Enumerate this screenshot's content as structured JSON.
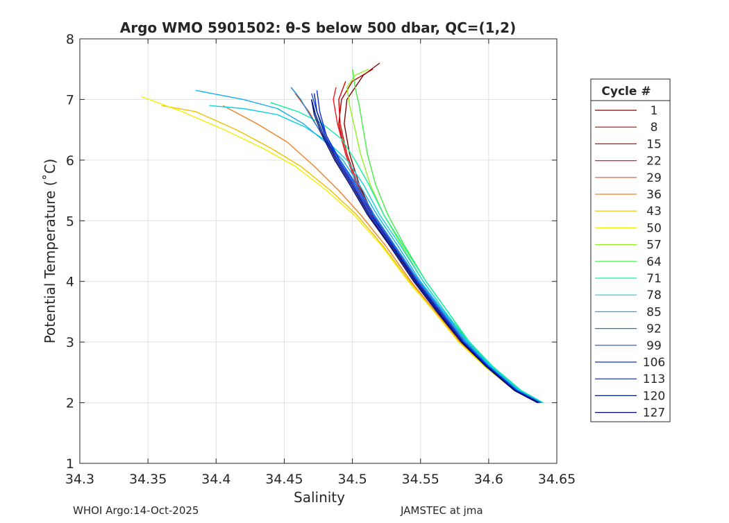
{
  "chart_data": {
    "type": "line",
    "title": "Argo WMO 5901502: θ-S below 500 dbar,  QC=(1,2)",
    "xlabel": "Salinity",
    "ylabel": "Potential Temperature (˚C)",
    "xlim": [
      34.3,
      34.65
    ],
    "ylim": [
      1,
      8
    ],
    "xticks": [
      34.3,
      34.35,
      34.4,
      34.45,
      34.5,
      34.55,
      34.6,
      34.65
    ],
    "xtick_labels": [
      "34.3",
      "34.35",
      "34.4",
      "34.45",
      "34.5",
      "34.55",
      "34.6",
      "34.65"
    ],
    "yticks": [
      1,
      2,
      3,
      4,
      5,
      6,
      7,
      8
    ],
    "ytick_labels": [
      "1",
      "2",
      "3",
      "4",
      "5",
      "6",
      "7",
      "8"
    ],
    "grid": true,
    "legend": {
      "title": "Cycle #",
      "placement": "outside-right",
      "entries": [
        {
          "label": "1",
          "color": "#800000"
        },
        {
          "label": "8",
          "color": "#b00000"
        },
        {
          "label": "15",
          "color": "#e00000"
        },
        {
          "label": "22",
          "color": "#f01818"
        },
        {
          "label": "29",
          "color": "#f05010"
        },
        {
          "label": "36",
          "color": "#f08020"
        },
        {
          "label": "43",
          "color": "#f0c000"
        },
        {
          "label": "50",
          "color": "#f0f000"
        },
        {
          "label": "57",
          "color": "#90f020"
        },
        {
          "label": "64",
          "color": "#40f040"
        },
        {
          "label": "71",
          "color": "#10f0a0"
        },
        {
          "label": "78",
          "color": "#10d0e0"
        },
        {
          "label": "85",
          "color": "#10b0f0"
        },
        {
          "label": "92",
          "color": "#1080e0"
        },
        {
          "label": "99",
          "color": "#1050e0"
        },
        {
          "label": "106",
          "color": "#1030d0"
        },
        {
          "label": "113",
          "color": "#0020b0"
        },
        {
          "label": "120",
          "color": "#001890"
        },
        {
          "label": "127",
          "color": "#000870"
        }
      ]
    },
    "series": [
      {
        "name": "1",
        "color": "#800000",
        "x": [
          34.638,
          34.622,
          34.6,
          34.582,
          34.565,
          34.548,
          34.53,
          34.515,
          34.505,
          34.498,
          34.494,
          34.496,
          34.508,
          34.52
        ],
        "y": [
          2.0,
          2.2,
          2.6,
          3.0,
          3.5,
          4.0,
          4.6,
          5.1,
          5.6,
          6.1,
          6.6,
          7.0,
          7.4,
          7.6
        ]
      },
      {
        "name": "8",
        "color": "#b00000",
        "x": [
          34.637,
          34.62,
          34.598,
          34.58,
          34.563,
          34.546,
          34.529,
          34.514,
          34.503,
          34.495,
          34.49,
          34.492,
          34.5,
          34.515
        ],
        "y": [
          2.0,
          2.2,
          2.6,
          3.0,
          3.5,
          4.0,
          4.6,
          5.1,
          5.6,
          6.1,
          6.6,
          7.0,
          7.3,
          7.5
        ]
      },
      {
        "name": "15",
        "color": "#e00000",
        "x": [
          34.637,
          34.621,
          34.599,
          34.581,
          34.564,
          34.547,
          34.53,
          34.515,
          34.504,
          34.496,
          34.491,
          34.49,
          34.495
        ],
        "y": [
          2.0,
          2.2,
          2.6,
          3.0,
          3.5,
          4.0,
          4.6,
          5.1,
          5.6,
          6.1,
          6.6,
          7.0,
          7.3
        ]
      },
      {
        "name": "22",
        "color": "#f01818",
        "x": [
          34.636,
          34.62,
          34.598,
          34.58,
          34.563,
          34.546,
          34.529,
          34.514,
          34.503,
          34.495,
          34.489,
          34.486,
          34.488
        ],
        "y": [
          2.0,
          2.2,
          2.6,
          3.0,
          3.5,
          4.0,
          4.6,
          5.1,
          5.6,
          6.1,
          6.6,
          7.0,
          7.2
        ]
      },
      {
        "name": "29",
        "color": "#f05010",
        "x": [
          34.636,
          34.619,
          34.597,
          34.579,
          34.562,
          34.545,
          34.527,
          34.512,
          34.5,
          34.489,
          34.478,
          34.468,
          34.458
        ],
        "y": [
          2.0,
          2.2,
          2.6,
          3.0,
          3.5,
          4.0,
          4.6,
          5.1,
          5.6,
          6.0,
          6.4,
          6.8,
          7.1
        ]
      },
      {
        "name": "36",
        "color": "#f08020",
        "x": [
          34.636,
          34.619,
          34.597,
          34.579,
          34.561,
          34.543,
          34.524,
          34.506,
          34.49,
          34.472,
          34.452,
          34.43,
          34.405
        ],
        "y": [
          2.0,
          2.2,
          2.6,
          3.0,
          3.5,
          4.0,
          4.6,
          5.1,
          5.5,
          5.9,
          6.3,
          6.6,
          6.9
        ]
      },
      {
        "name": "43",
        "color": "#f0c000",
        "x": [
          34.636,
          34.619,
          34.597,
          34.578,
          34.56,
          34.542,
          34.522,
          34.503,
          34.484,
          34.462,
          34.44,
          34.415,
          34.385,
          34.36
        ],
        "y": [
          2.0,
          2.2,
          2.6,
          3.0,
          3.5,
          4.0,
          4.6,
          5.1,
          5.5,
          5.9,
          6.2,
          6.5,
          6.8,
          6.9
        ]
      },
      {
        "name": "50",
        "color": "#f0f000",
        "x": [
          34.636,
          34.619,
          34.597,
          34.578,
          34.56,
          34.541,
          34.521,
          34.501,
          34.481,
          34.458,
          34.434,
          34.406,
          34.375,
          34.345
        ],
        "y": [
          2.0,
          2.2,
          2.6,
          3.0,
          3.5,
          4.0,
          4.6,
          5.1,
          5.5,
          5.9,
          6.2,
          6.5,
          6.8,
          7.05
        ]
      },
      {
        "name": "57",
        "color": "#90f020",
        "x": [
          34.638,
          34.622,
          34.601,
          34.584,
          34.568,
          34.552,
          34.536,
          34.523,
          34.513,
          34.506,
          34.502,
          34.498,
          34.496,
          34.502,
          34.512
        ],
        "y": [
          2.0,
          2.2,
          2.6,
          3.0,
          3.5,
          4.0,
          4.6,
          5.1,
          5.6,
          6.1,
          6.5,
          6.9,
          7.2,
          7.4,
          7.5
        ]
      },
      {
        "name": "64",
        "color": "#40f040",
        "x": [
          34.639,
          34.623,
          34.602,
          34.585,
          34.57,
          34.554,
          34.538,
          34.526,
          34.517,
          34.511,
          34.508,
          34.505,
          34.502,
          34.5
        ],
        "y": [
          2.0,
          2.2,
          2.6,
          3.0,
          3.5,
          4.0,
          4.6,
          5.1,
          5.6,
          6.1,
          6.5,
          6.9,
          7.2,
          7.5
        ]
      },
      {
        "name": "71",
        "color": "#10f0a0",
        "x": [
          34.64,
          34.624,
          34.603,
          34.586,
          34.57,
          34.554,
          34.537,
          34.523,
          34.512,
          34.502,
          34.492,
          34.478,
          34.46,
          34.44
        ],
        "y": [
          2.0,
          2.2,
          2.6,
          3.0,
          3.5,
          4.0,
          4.6,
          5.1,
          5.6,
          6.0,
          6.35,
          6.6,
          6.8,
          6.95
        ]
      },
      {
        "name": "78",
        "color": "#10d0e0",
        "x": [
          34.639,
          34.623,
          34.602,
          34.585,
          34.568,
          34.552,
          34.535,
          34.52,
          34.508,
          34.496,
          34.482,
          34.465,
          34.445,
          34.42,
          34.395
        ],
        "y": [
          2.0,
          2.2,
          2.6,
          3.0,
          3.5,
          4.0,
          4.6,
          5.1,
          5.6,
          6.0,
          6.3,
          6.55,
          6.75,
          6.85,
          6.9
        ]
      },
      {
        "name": "85",
        "color": "#10b0f0",
        "x": [
          34.639,
          34.622,
          34.601,
          34.584,
          34.567,
          34.55,
          34.533,
          34.518,
          34.505,
          34.493,
          34.48,
          34.464,
          34.445,
          34.42,
          34.385
        ],
        "y": [
          2.0,
          2.2,
          2.6,
          3.0,
          3.5,
          4.0,
          4.6,
          5.1,
          5.6,
          6.0,
          6.3,
          6.6,
          6.85,
          7.0,
          7.15
        ]
      },
      {
        "name": "92",
        "color": "#1080e0",
        "x": [
          34.638,
          34.621,
          34.6,
          34.583,
          34.566,
          34.549,
          34.531,
          34.516,
          34.503,
          34.491,
          34.48,
          34.47,
          34.462,
          34.455
        ],
        "y": [
          2.0,
          2.2,
          2.6,
          3.0,
          3.5,
          4.0,
          4.6,
          5.1,
          5.6,
          6.0,
          6.35,
          6.7,
          7.0,
          7.2
        ]
      },
      {
        "name": "99",
        "color": "#1050e0",
        "x": [
          34.638,
          34.621,
          34.6,
          34.582,
          34.565,
          34.548,
          34.53,
          34.515,
          34.502,
          34.491,
          34.481,
          34.474,
          34.47
        ],
        "y": [
          2.0,
          2.2,
          2.6,
          3.0,
          3.5,
          4.0,
          4.6,
          5.1,
          5.6,
          6.0,
          6.4,
          6.8,
          7.1
        ]
      },
      {
        "name": "106",
        "color": "#1030d0",
        "x": [
          34.637,
          34.62,
          34.599,
          34.581,
          34.564,
          34.547,
          34.529,
          34.514,
          34.501,
          34.49,
          34.481,
          34.476,
          34.474
        ],
        "y": [
          2.0,
          2.2,
          2.6,
          3.0,
          3.5,
          4.0,
          4.6,
          5.1,
          5.6,
          6.0,
          6.4,
          6.8,
          7.15
        ]
      },
      {
        "name": "113",
        "color": "#0020b0",
        "x": [
          34.637,
          34.62,
          34.599,
          34.581,
          34.564,
          34.547,
          34.529,
          34.513,
          34.5,
          34.489,
          34.48,
          34.474,
          34.472
        ],
        "y": [
          2.0,
          2.2,
          2.6,
          3.0,
          3.5,
          4.0,
          4.6,
          5.1,
          5.6,
          6.0,
          6.4,
          6.8,
          7.1
        ]
      },
      {
        "name": "120",
        "color": "#001890",
        "x": [
          34.636,
          34.619,
          34.598,
          34.58,
          34.563,
          34.546,
          34.528,
          34.512,
          34.499,
          34.488,
          34.479,
          34.473,
          34.47
        ],
        "y": [
          2.0,
          2.2,
          2.6,
          3.0,
          3.5,
          4.0,
          4.6,
          5.1,
          5.6,
          6.0,
          6.4,
          6.75,
          7.0
        ]
      },
      {
        "name": "127",
        "color": "#000870",
        "x": [
          34.636,
          34.619,
          34.598,
          34.58,
          34.562,
          34.545,
          34.527,
          34.511,
          34.498,
          34.487,
          34.478,
          34.472,
          34.47
        ],
        "y": [
          2.0,
          2.2,
          2.6,
          3.0,
          3.5,
          4.0,
          4.6,
          5.1,
          5.6,
          6.0,
          6.4,
          6.75,
          7.0
        ]
      }
    ]
  },
  "footer": {
    "left": "WHOI Argo:14-Oct-2025",
    "right": "JAMSTEC at jma"
  }
}
